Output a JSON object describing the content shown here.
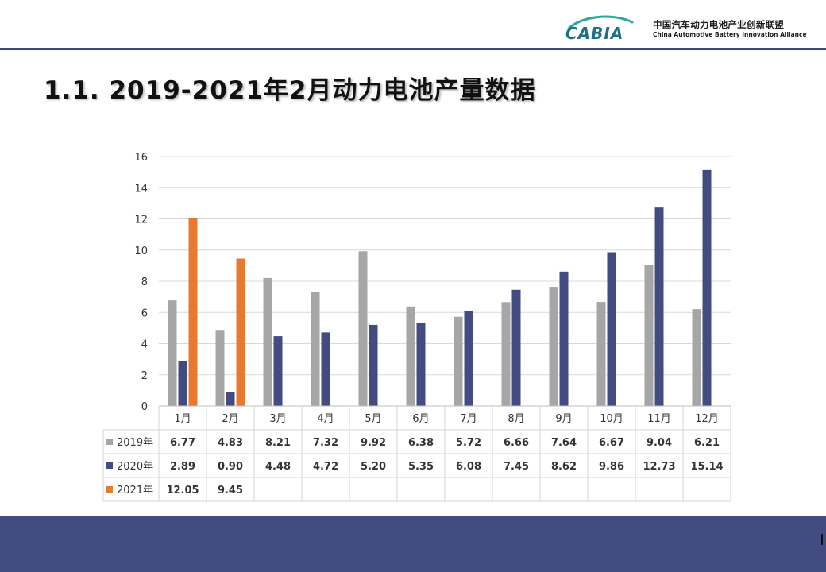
{
  "header": {
    "logo_text": "CABIA",
    "org_name_cn": "中国汽车动力电池产业创新联盟",
    "org_name_en": "China Automotive Battery Innovation Alliance"
  },
  "page": {
    "title": "1.1. 2019-2021年2月动力电池产量数据"
  },
  "colors": {
    "series_2019": "#a6a6a6",
    "series_2020": "#434c80",
    "series_2021": "#e8792f",
    "header_rule": "#3b4a7a",
    "footer_band": "#434c80",
    "gridline": "#d9d9d9"
  },
  "chart_data": {
    "type": "bar",
    "title": "",
    "xlabel": "",
    "ylabel": "",
    "ylim": [
      0,
      16
    ],
    "yticks": [
      "0",
      "2",
      "4",
      "6",
      "8",
      "10",
      "12",
      "14",
      "16"
    ],
    "ytick_values": [
      0,
      2,
      4,
      6,
      8,
      10,
      12,
      14,
      16
    ],
    "grid": true,
    "legend": "data-table",
    "categories": [
      "1月",
      "2月",
      "3月",
      "4月",
      "5月",
      "6月",
      "7月",
      "8月",
      "9月",
      "10月",
      "11月",
      "12月"
    ],
    "series": [
      {
        "name": "2019年",
        "values": [
          6.77,
          4.83,
          8.21,
          7.32,
          9.92,
          6.38,
          5.72,
          6.66,
          7.64,
          6.67,
          9.04,
          6.21
        ],
        "labels": [
          "6.77",
          "4.83",
          "8.21",
          "7.32",
          "9.92",
          "6.38",
          "5.72",
          "6.66",
          "7.64",
          "6.67",
          "9.04",
          "6.21"
        ]
      },
      {
        "name": "2020年",
        "values": [
          2.89,
          0.9,
          4.48,
          4.72,
          5.2,
          5.35,
          6.08,
          7.45,
          8.62,
          9.86,
          12.73,
          15.14
        ],
        "labels": [
          "2.89",
          "0.90",
          "4.48",
          "4.72",
          "5.20",
          "5.35",
          "6.08",
          "7.45",
          "8.62",
          "9.86",
          "12.73",
          "15.14"
        ]
      },
      {
        "name": "2021年",
        "values": [
          12.05,
          9.45,
          null,
          null,
          null,
          null,
          null,
          null,
          null,
          null,
          null,
          null
        ],
        "labels": [
          "12.05",
          "9.45",
          "",
          "",
          "",
          "",
          "",
          "",
          "",
          "",
          "",
          ""
        ]
      }
    ]
  }
}
